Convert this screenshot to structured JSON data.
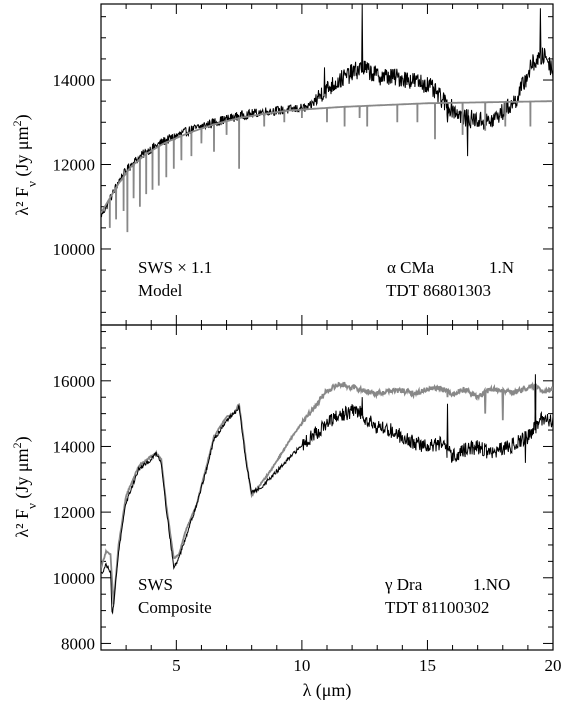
{
  "chart_data": [
    {
      "type": "line",
      "panel": "top",
      "ylabel": "λ² F",
      "ylabel_sub": "ν",
      "ylabel_unit": " (Jy μm",
      "ylabel_unit_sup": "2",
      "ylabel_close": ")",
      "xlim": [
        2,
        20
      ],
      "ylim": [
        8200,
        15800
      ],
      "yticks": [
        10000,
        12000,
        14000
      ],
      "yticklabels": [
        "10000",
        "12000",
        "14000"
      ],
      "annotations": {
        "left_line1": "SWS × 1.1",
        "left_line2": "Model",
        "star_symbol": "α",
        "star_name": " CMa",
        "class_label": "1.N",
        "tdt": "TDT 86801303"
      },
      "series": [
        {
          "color": "#000000",
          "style": "noisy",
          "points": [
            [
              2.0,
              10800
            ],
            [
              2.3,
              11100
            ],
            [
              2.7,
              11600
            ],
            [
              3.2,
              12000
            ],
            [
              3.8,
              12300
            ],
            [
              4.5,
              12550
            ],
            [
              5.5,
              12800
            ],
            [
              6.5,
              13000
            ],
            [
              7.5,
              13150
            ],
            [
              8.5,
              13250
            ],
            [
              9.5,
              13300
            ],
            [
              10.3,
              13350
            ],
            [
              10.8,
              13700
            ],
            [
              11.5,
              14000
            ],
            [
              12.4,
              14300
            ],
            [
              13.0,
              14100
            ],
            [
              14.0,
              14050
            ],
            [
              15.0,
              13900
            ],
            [
              15.8,
              13400
            ],
            [
              16.5,
              13100
            ],
            [
              17.5,
              13000
            ],
            [
              18.5,
              13500
            ],
            [
              19.2,
              14400
            ],
            [
              19.7,
              14600
            ],
            [
              20.0,
              14200
            ]
          ],
          "spikes": [
            [
              12.4,
              15800
            ],
            [
              19.5,
              15700
            ],
            [
              10.9,
              14300
            ],
            [
              15.8,
              13000
            ],
            [
              16.6,
              12200
            ]
          ]
        },
        {
          "color": "#888888",
          "style": "model",
          "points": [
            [
              2.0,
              10850
            ],
            [
              2.3,
              11150
            ],
            [
              2.7,
              11550
            ],
            [
              3.2,
              11950
            ],
            [
              3.8,
              12250
            ],
            [
              4.5,
              12500
            ],
            [
              5.5,
              12750
            ],
            [
              6.5,
              12950
            ],
            [
              7.5,
              13100
            ],
            [
              8.5,
              13200
            ],
            [
              9.5,
              13280
            ],
            [
              10.5,
              13320
            ],
            [
              11.5,
              13360
            ],
            [
              13.0,
              13400
            ],
            [
              15.0,
              13450
            ],
            [
              17.0,
              13470
            ],
            [
              20.0,
              13500
            ]
          ],
          "absorption": [
            [
              2.35,
              10500
            ],
            [
              2.6,
              10700
            ],
            [
              2.9,
              10900
            ],
            [
              3.05,
              10400
            ],
            [
              3.3,
              11200
            ],
            [
              3.55,
              11000
            ],
            [
              3.8,
              11300
            ],
            [
              4.05,
              11400
            ],
            [
              4.3,
              11500
            ],
            [
              4.6,
              11700
            ],
            [
              4.9,
              11900
            ],
            [
              5.2,
              12100
            ],
            [
              5.6,
              12200
            ],
            [
              6.0,
              12500
            ],
            [
              6.5,
              12300
            ],
            [
              7.0,
              12700
            ],
            [
              7.5,
              11900
            ],
            [
              8.5,
              12900
            ],
            [
              9.3,
              13000
            ],
            [
              10.0,
              13100
            ],
            [
              11.0,
              13000
            ],
            [
              11.7,
              12900
            ],
            [
              12.3,
              13100
            ],
            [
              12.6,
              12900
            ],
            [
              13.8,
              13000
            ],
            [
              14.6,
              13000
            ],
            [
              15.3,
              12600
            ],
            [
              16.4,
              12700
            ],
            [
              17.3,
              12800
            ],
            [
              18.1,
              12900
            ],
            [
              19.1,
              12900
            ]
          ]
        }
      ]
    },
    {
      "type": "line",
      "panel": "bottom",
      "xlabel": "λ (μm)",
      "ylabel": "λ² F",
      "ylabel_sub": "ν",
      "ylabel_unit": " (Jy μm",
      "ylabel_unit_sup": "2",
      "ylabel_close": ")",
      "xlim": [
        2,
        20
      ],
      "ylim": [
        7800,
        17700
      ],
      "xticks": [
        5,
        10,
        15,
        20
      ],
      "xticklabels": [
        "5",
        "10",
        "15",
        "20"
      ],
      "yticks": [
        8000,
        10000,
        12000,
        14000,
        16000
      ],
      "yticklabels": [
        "8000",
        "10000",
        "12000",
        "14000",
        "16000"
      ],
      "annotations": {
        "left_line1": "SWS",
        "left_line2": "Composite",
        "star_symbol": "γ",
        "star_name": " Dra",
        "class_label": "1.NO",
        "tdt": "TDT 81100302"
      },
      "series": [
        {
          "color": "#888888",
          "style": "smooth",
          "points": [
            [
              2.0,
              10300
            ],
            [
              2.2,
              10800
            ],
            [
              2.38,
              10700
            ],
            [
              2.5,
              9200
            ],
            [
              2.7,
              11000
            ],
            [
              3.0,
              12500
            ],
            [
              3.5,
              13400
            ],
            [
              4.0,
              13700
            ],
            [
              4.2,
              13800
            ],
            [
              4.4,
              13600
            ],
            [
              4.6,
              12200
            ],
            [
              4.9,
              10600
            ],
            [
              5.1,
              10700
            ],
            [
              5.4,
              11500
            ],
            [
              5.8,
              12200
            ],
            [
              6.2,
              13400
            ],
            [
              6.5,
              14300
            ],
            [
              7.0,
              14900
            ],
            [
              7.3,
              15000
            ],
            [
              7.5,
              15300
            ],
            [
              7.8,
              13500
            ],
            [
              8.0,
              12500
            ],
            [
              8.3,
              12800
            ],
            [
              8.7,
              13200
            ],
            [
              9.2,
              13800
            ],
            [
              9.7,
              14400
            ],
            [
              10.2,
              14900
            ],
            [
              10.7,
              15400
            ],
            [
              11.0,
              15700
            ],
            [
              11.5,
              15900
            ],
            [
              12.0,
              15800
            ],
            [
              12.5,
              15700
            ],
            [
              13.0,
              15600
            ],
            [
              13.5,
              15700
            ],
            [
              14.0,
              15700
            ],
            [
              14.5,
              15600
            ],
            [
              15.0,
              15750
            ],
            [
              15.5,
              15800
            ],
            [
              16.0,
              15600
            ],
            [
              16.5,
              15750
            ],
            [
              17.0,
              15500
            ],
            [
              17.5,
              15750
            ],
            [
              18.0,
              15700
            ],
            [
              18.5,
              15650
            ],
            [
              19.0,
              15800
            ],
            [
              19.4,
              15800
            ],
            [
              19.6,
              15700
            ],
            [
              20.0,
              15750
            ]
          ],
          "spikes": [
            [
              15.8,
              15500
            ],
            [
              17.3,
              15000
            ],
            [
              18.0,
              14800
            ],
            [
              19.3,
              15100
            ]
          ]
        },
        {
          "color": "#000000",
          "style": "noisy",
          "points": [
            [
              2.0,
              10100
            ],
            [
              2.2,
              10400
            ],
            [
              2.38,
              10200
            ],
            [
              2.45,
              8800
            ],
            [
              2.7,
              10800
            ],
            [
              3.0,
              12300
            ],
            [
              3.5,
              13300
            ],
            [
              4.0,
              13600
            ],
            [
              4.2,
              13800
            ],
            [
              4.4,
              13500
            ],
            [
              4.6,
              12100
            ],
            [
              4.9,
              10300
            ],
            [
              5.1,
              10600
            ],
            [
              5.4,
              11300
            ],
            [
              5.8,
              12200
            ],
            [
              6.2,
              13300
            ],
            [
              6.5,
              14200
            ],
            [
              7.0,
              14800
            ],
            [
              7.3,
              15000
            ],
            [
              7.5,
              15200
            ],
            [
              7.8,
              13400
            ],
            [
              8.0,
              12600
            ],
            [
              8.3,
              12700
            ],
            [
              8.7,
              13000
            ],
            [
              9.2,
              13400
            ],
            [
              9.7,
              13800
            ],
            [
              10.2,
              14200
            ],
            [
              10.7,
              14500
            ],
            [
              11.2,
              14800
            ],
            [
              11.7,
              15000
            ],
            [
              12.2,
              15100
            ],
            [
              12.5,
              14900
            ],
            [
              13.0,
              14600
            ],
            [
              13.5,
              14500
            ],
            [
              14.0,
              14300
            ],
            [
              14.5,
              14100
            ],
            [
              15.0,
              14000
            ],
            [
              15.5,
              14100
            ],
            [
              16.0,
              13700
            ],
            [
              16.5,
              13900
            ],
            [
              17.0,
              14000
            ],
            [
              17.5,
              13800
            ],
            [
              18.0,
              13900
            ],
            [
              18.5,
              14100
            ],
            [
              19.0,
              14300
            ],
            [
              19.5,
              14800
            ],
            [
              20.0,
              14800
            ]
          ],
          "spikes": [
            [
              12.4,
              15500
            ],
            [
              15.8,
              15300
            ],
            [
              19.3,
              16200
            ],
            [
              18.9,
              13500
            ]
          ]
        }
      ]
    }
  ]
}
